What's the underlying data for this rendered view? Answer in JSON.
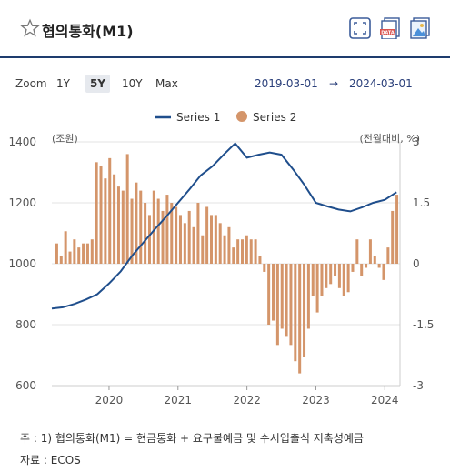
{
  "header": {
    "title": "협의통화(M1)",
    "star_icon": "star-outline-icon",
    "fullscreen_icon": "fullscreen-icon",
    "data_icon": "data-download-icon",
    "image_icon": "image-download-icon"
  },
  "toolbar": {
    "zoom_label": "Zoom",
    "zoom_options": [
      "1Y",
      "5Y",
      "10Y",
      "Max"
    ],
    "active_zoom": "5Y",
    "range_from": "2019-03-01",
    "range_arrow": "→",
    "range_to": "2024-03-01"
  },
  "chart_data": {
    "type": "bar+line",
    "legend": [
      "Series 1",
      "Series 2"
    ],
    "left_axis": {
      "unit": "(조원)",
      "ticks": [
        "1400",
        "1200",
        "1000",
        "800",
        "600"
      ],
      "min": 600,
      "max": 1400
    },
    "right_axis": {
      "unit": "(전월대비, %)",
      "ticks": [
        "3",
        "1.5",
        "0",
        "-1.5",
        "-3"
      ],
      "min": -3,
      "max": 3
    },
    "x_ticks": [
      "2020",
      "2021",
      "2022",
      "2023",
      "2024"
    ],
    "series1": [
      [
        2019.17,
        853
      ],
      [
        2019.33,
        857
      ],
      [
        2019.5,
        868
      ],
      [
        2019.67,
        883
      ],
      [
        2019.83,
        900
      ],
      [
        2020.0,
        935
      ],
      [
        2020.17,
        975
      ],
      [
        2020.33,
        1025
      ],
      [
        2020.5,
        1070
      ],
      [
        2020.67,
        1115
      ],
      [
        2020.83,
        1155
      ],
      [
        2021.0,
        1200
      ],
      [
        2021.17,
        1245
      ],
      [
        2021.33,
        1290
      ],
      [
        2021.5,
        1320
      ],
      [
        2021.67,
        1360
      ],
      [
        2021.83,
        1395
      ],
      [
        2022.0,
        1348
      ],
      [
        2022.17,
        1358
      ],
      [
        2022.33,
        1365
      ],
      [
        2022.5,
        1358
      ],
      [
        2022.67,
        1310
      ],
      [
        2022.83,
        1260
      ],
      [
        2023.0,
        1200
      ],
      [
        2023.17,
        1188
      ],
      [
        2023.33,
        1178
      ],
      [
        2023.5,
        1172
      ],
      [
        2023.67,
        1185
      ],
      [
        2023.83,
        1200
      ],
      [
        2024.0,
        1210
      ],
      [
        2024.17,
        1235
      ]
    ],
    "series2": [
      0.5,
      0.2,
      0.8,
      0.3,
      0.6,
      0.4,
      0.5,
      0.5,
      0.6,
      2.5,
      2.4,
      2.1,
      2.6,
      2.2,
      1.9,
      1.8,
      2.7,
      1.6,
      2.0,
      1.8,
      1.5,
      1.2,
      1.8,
      1.6,
      1.3,
      1.7,
      1.5,
      1.4,
      1.2,
      1.0,
      1.3,
      0.9,
      1.5,
      0.7,
      1.4,
      1.2,
      1.2,
      1.0,
      0.7,
      0.9,
      0.4,
      0.6,
      0.6,
      0.7,
      0.6,
      0.6,
      0.2,
      -0.2,
      -1.5,
      -1.4,
      -2.0,
      -1.6,
      -1.8,
      -2.0,
      -2.4,
      -2.7,
      -2.3,
      -1.6,
      -0.8,
      -1.2,
      -0.8,
      -0.6,
      -0.5,
      -0.3,
      -0.6,
      -0.8,
      -0.7,
      -0.2,
      0.6,
      -0.3,
      -0.1,
      0.6,
      0.2,
      -0.1,
      -0.4,
      0.4,
      1.3,
      1.7
    ]
  },
  "notes": {
    "line1": "주 : 1) 협의통화(M1) = 현금통화 + 요구불예금 및 수시입출식 저축성예금",
    "line2": "자료 :  ECOS"
  },
  "colors": {
    "line": "#1f4e8c",
    "bar": "#d4956a",
    "grid": "#e3e3e3"
  }
}
